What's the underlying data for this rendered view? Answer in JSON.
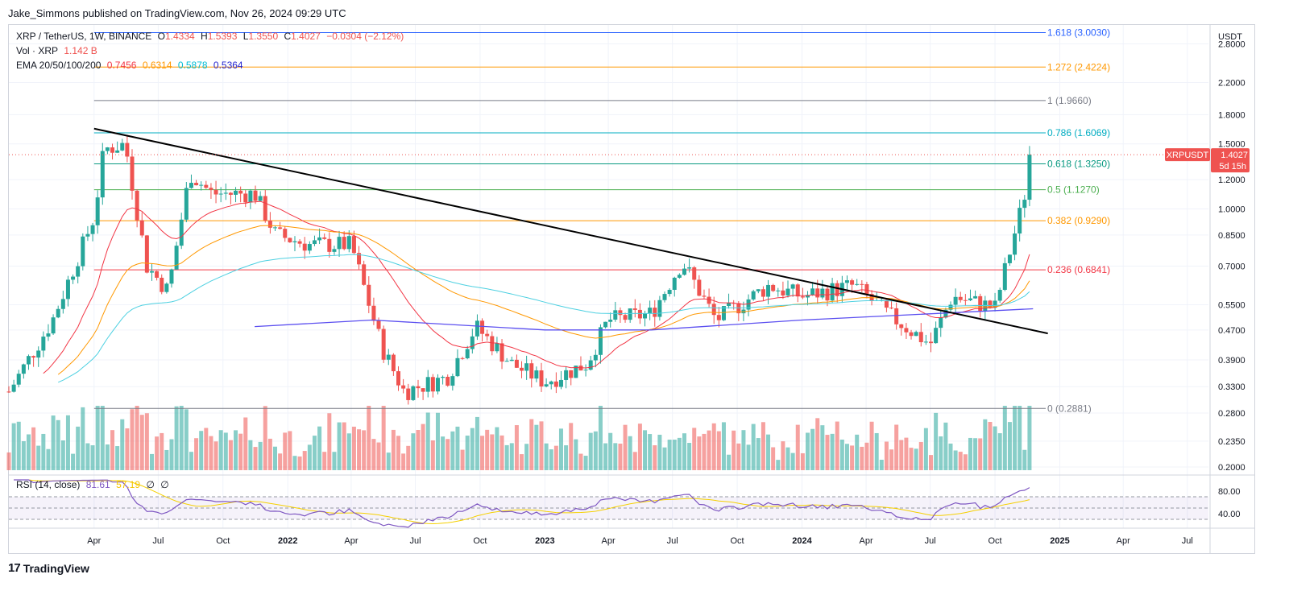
{
  "header": {
    "publisher_line": "Jake_Simmons published on TradingView.com, Nov 26, 2024 09:29 UTC"
  },
  "legend": {
    "symbol": "XRP / TetherUS, 1W, BINANCE",
    "o_label": "O",
    "o_value": "1.4334",
    "h_label": "H",
    "h_value": "1.5393",
    "l_label": "L",
    "l_value": "1.3550",
    "c_label": "C",
    "c_value": "1.4027",
    "change": "−0.0304 (−2.12%)",
    "vol_label": "Vol · XRP",
    "vol_value": "1.142 B",
    "ema_label": "EMA 20/50/100/200",
    "ema_values": [
      "0.7456",
      "0.6314",
      "0.5878",
      "0.5364"
    ]
  },
  "rsi": {
    "label": "RSI (14, close)",
    "value1": "81.61",
    "value2": "57.19",
    "phi1": "∅",
    "phi2": "∅",
    "ticks": [
      "80.00",
      "40.00"
    ]
  },
  "price_axis": {
    "unit": "USDT",
    "ticks": [
      "2.8000",
      "2.2000",
      "1.8000",
      "1.5000",
      "1.2000",
      "1.0000",
      "0.8500",
      "0.7000",
      "0.5500",
      "0.4700",
      "0.3900",
      "0.3300",
      "0.2800",
      "0.2350",
      "0.2000"
    ]
  },
  "current_price": {
    "ticker": "XRPUSDT",
    "price": "1.4027",
    "countdown": "5d 15h"
  },
  "time_axis": [
    "Apr",
    "Jul",
    "Oct",
    "2022",
    "Apr",
    "Jul",
    "Oct",
    "2023",
    "Apr",
    "Jul",
    "Oct",
    "2024",
    "Apr",
    "Jul",
    "Oct",
    "2025",
    "Apr",
    "Jul"
  ],
  "footer": {
    "brand": "TradingView"
  },
  "colors": {
    "up": "#26a69a",
    "down": "#ef5350",
    "ema20": "#f23645",
    "ema50": "#ff9800",
    "ema100": "#4dd0e1",
    "ema200": "#5b4ff0",
    "rsi": "#7e57c2",
    "rsi_ma": "#f5d000",
    "trendline": "#000000"
  },
  "chart_data": {
    "type": "candlestick",
    "title": "XRP / TetherUS, 1W, BINANCE",
    "fib_levels": [
      {
        "label": "1.618 (3.0030)",
        "value": 3.003,
        "color": "#2962ff"
      },
      {
        "label": "1.272 (2.4224)",
        "value": 2.4224,
        "color": "#ff9800"
      },
      {
        "label": "1 (1.9660)",
        "value": 1.966,
        "color": "#787b86"
      },
      {
        "label": "0.786 (1.6069)",
        "value": 1.6069,
        "color": "#00acc1"
      },
      {
        "label": "0.618 (1.3250)",
        "value": 1.325,
        "color": "#089981"
      },
      {
        "label": "0.5 (1.1270)",
        "value": 1.127,
        "color": "#4caf50"
      },
      {
        "label": "0.382 (0.9290)",
        "value": 0.929,
        "color": "#ff9800"
      },
      {
        "label": "0.236 (0.6841)",
        "value": 0.6841,
        "color": "#f23645"
      },
      {
        "label": "0 (0.2881)",
        "value": 0.2881,
        "color": "#787b86"
      }
    ],
    "trendline": {
      "start": {
        "date": "2021-04-01",
        "price": 1.65
      },
      "end": {
        "date": "2024-12-15",
        "price": 0.46
      }
    },
    "price_series": [
      {
        "date": "2020-12-01",
        "close": 0.32
      },
      {
        "date": "2021-02-01",
        "close": 0.5
      },
      {
        "date": "2021-04-01",
        "close": 0.95
      },
      {
        "date": "2021-04-15",
        "close": 1.45
      },
      {
        "date": "2021-05-15",
        "close": 1.5
      },
      {
        "date": "2021-06-15",
        "close": 0.7
      },
      {
        "date": "2021-07-15",
        "close": 0.6
      },
      {
        "date": "2021-08-15",
        "close": 1.25
      },
      {
        "date": "2021-09-15",
        "close": 1.1
      },
      {
        "date": "2021-10-15",
        "close": 1.1
      },
      {
        "date": "2021-11-15",
        "close": 1.1
      },
      {
        "date": "2021-12-15",
        "close": 0.85
      },
      {
        "date": "2022-02-01",
        "close": 0.8
      },
      {
        "date": "2022-04-01",
        "close": 0.8
      },
      {
        "date": "2022-05-15",
        "close": 0.42
      },
      {
        "date": "2022-06-15",
        "close": 0.32
      },
      {
        "date": "2022-08-15",
        "close": 0.35
      },
      {
        "date": "2022-09-25",
        "close": 0.48
      },
      {
        "date": "2022-11-15",
        "close": 0.38
      },
      {
        "date": "2023-01-01",
        "close": 0.34
      },
      {
        "date": "2023-03-01",
        "close": 0.38
      },
      {
        "date": "2023-04-01",
        "close": 0.5
      },
      {
        "date": "2023-06-01",
        "close": 0.52
      },
      {
        "date": "2023-07-15",
        "close": 0.72
      },
      {
        "date": "2023-09-01",
        "close": 0.5
      },
      {
        "date": "2023-11-15",
        "close": 0.62
      },
      {
        "date": "2024-01-01",
        "close": 0.58
      },
      {
        "date": "2024-03-15",
        "close": 0.62
      },
      {
        "date": "2024-05-01",
        "close": 0.52
      },
      {
        "date": "2024-07-01",
        "close": 0.43
      },
      {
        "date": "2024-08-01",
        "close": 0.58
      },
      {
        "date": "2024-10-01",
        "close": 0.54
      },
      {
        "date": "2024-11-10",
        "close": 1.05
      },
      {
        "date": "2024-11-24",
        "close": 1.4027
      }
    ],
    "ema200": [
      {
        "date": "2021-11-15",
        "value": 0.48
      },
      {
        "date": "2022-05-01",
        "value": 0.5
      },
      {
        "date": "2023-01-01",
        "value": 0.47
      },
      {
        "date": "2023-06-01",
        "value": 0.47
      },
      {
        "date": "2024-01-01",
        "value": 0.5
      },
      {
        "date": "2024-11-24",
        "value": 0.5364
      }
    ],
    "rsi_range": [
      20,
      100
    ],
    "y_scale": "log",
    "ylim": [
      0.195,
      3.15
    ],
    "xlim": [
      "2020-12-01",
      "2025-07-31"
    ]
  }
}
